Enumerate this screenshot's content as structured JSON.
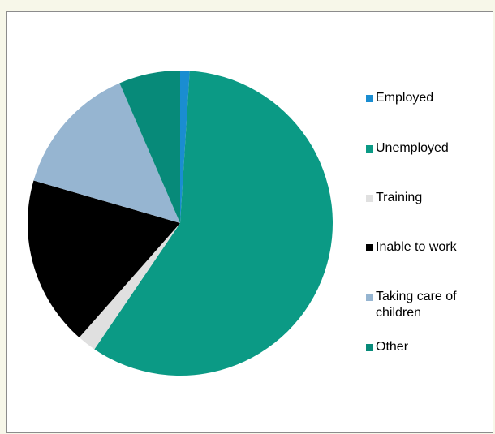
{
  "chart_data": {
    "type": "pie",
    "title": "",
    "categories": [
      "Employed",
      "Unemployed",
      "Training",
      "Inable to work",
      "Taking care of children",
      "Other"
    ],
    "values": [
      1,
      58.5,
      2,
      18,
      14,
      6.5
    ],
    "colors": [
      "#1a8dd1",
      "#0b9a85",
      "#e0e0e0",
      "#000000",
      "#96b5d1",
      "#078a79"
    ],
    "legend_position": "right"
  }
}
